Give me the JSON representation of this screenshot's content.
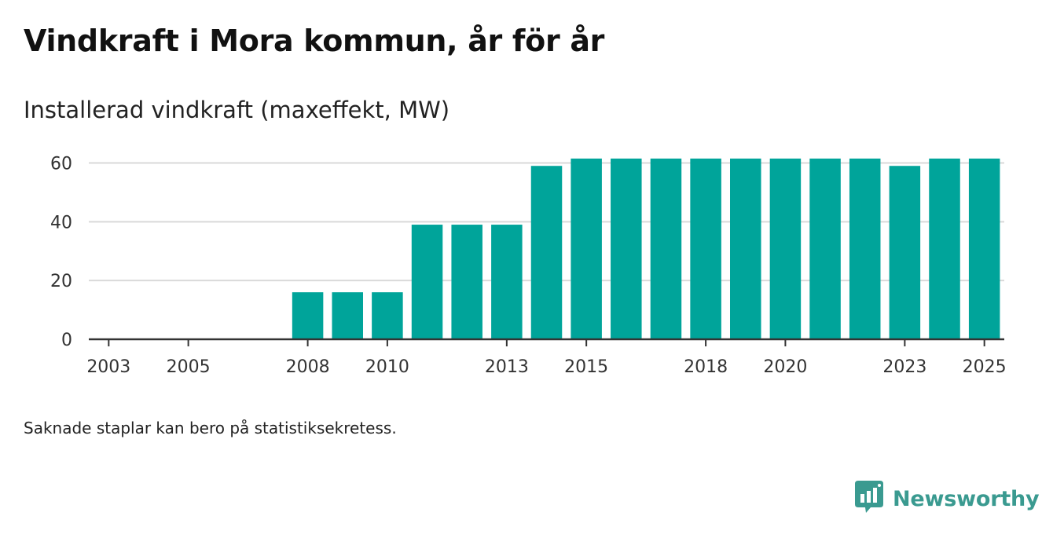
{
  "title": "Vindkraft i Mora kommun, år för år",
  "subtitle": "Installerad vindkraft (maxeffekt, MW)",
  "note": "Saknade staplar kan bero på statistiksekretess.",
  "brand": {
    "name": "Newsworthy",
    "icon": "newsworthy-logo-icon",
    "color": "#3a9a90"
  },
  "colors": {
    "bar": "#00a49a",
    "grid": "#d9d9d9",
    "axis": "#333333"
  },
  "chart_data": {
    "type": "bar",
    "title": "Vindkraft i Mora kommun, år för år",
    "subtitle": "Installerad vindkraft (maxeffekt, MW)",
    "xlabel": "",
    "ylabel": "",
    "categories": [
      "2003",
      "2004",
      "2005",
      "2006",
      "2007",
      "2008",
      "2009",
      "2010",
      "2011",
      "2012",
      "2013",
      "2014",
      "2015",
      "2016",
      "2017",
      "2018",
      "2019",
      "2020",
      "2021",
      "2022",
      "2023",
      "2024",
      "2025"
    ],
    "values": [
      0,
      0,
      0,
      0,
      0,
      16,
      16,
      16,
      39,
      39,
      39,
      59,
      61.5,
      61.5,
      61.5,
      61.5,
      61.5,
      61.5,
      61.5,
      61.5,
      59,
      61.5,
      61.5
    ],
    "x_tick_labels": [
      "2003",
      "2005",
      "2008",
      "2010",
      "2013",
      "2015",
      "2018",
      "2020",
      "2023",
      "2025"
    ],
    "y_ticks": [
      0,
      20,
      40,
      60
    ],
    "ylim": [
      0,
      62
    ],
    "grid": true,
    "legend": "none"
  }
}
